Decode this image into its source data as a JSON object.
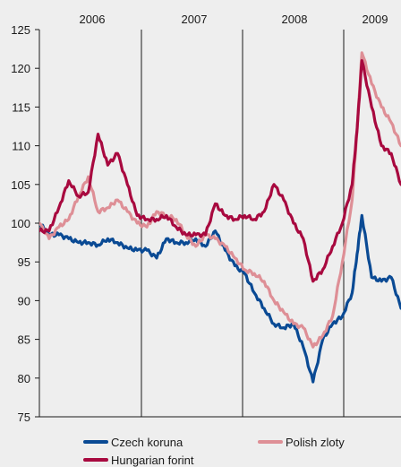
{
  "chart_data": {
    "type": "line",
    "title": "",
    "xlabel": "",
    "ylabel": "",
    "ylim": [
      75,
      125
    ],
    "yticks": [
      75,
      80,
      85,
      90,
      95,
      100,
      105,
      110,
      115,
      120,
      125
    ],
    "year_labels": [
      "2006",
      "2007",
      "2008",
      "2009"
    ],
    "grid": false,
    "year_dividers": true,
    "legend_position": "bottom",
    "series": [
      {
        "name": "Czech koruna",
        "color": "#0a4a94",
        "x": [
          2005.85,
          2005.95,
          2006.05,
          2006.15,
          2006.25,
          2006.35,
          2006.45,
          2006.55,
          2006.65,
          2006.75,
          2006.85,
          2006.95,
          2007.05,
          2007.15,
          2007.25,
          2007.35,
          2007.45,
          2007.55,
          2007.65,
          2007.75,
          2007.85,
          2007.95,
          2008.05,
          2008.15,
          2008.25,
          2008.35,
          2008.45,
          2008.55,
          2008.65,
          2008.75,
          2008.85,
          2008.95,
          2009.05,
          2009.1,
          2009.15,
          2009.25,
          2009.35,
          2009.45,
          2009.55
        ],
        "values": [
          100,
          98.5,
          98.5,
          98,
          97.5,
          97.5,
          97.2,
          98,
          97.5,
          96.8,
          96.5,
          96.5,
          95.5,
          98,
          97.5,
          97.5,
          98,
          97,
          99,
          96.5,
          94.5,
          93.5,
          91,
          89,
          87,
          86.5,
          87,
          84,
          79.5,
          85,
          87,
          88,
          91,
          96,
          101,
          93,
          92.5,
          93,
          89
        ]
      },
      {
        "name": "Polish zloty",
        "color": "#de8f96",
        "x": [
          2005.85,
          2005.95,
          2006.05,
          2006.15,
          2006.25,
          2006.35,
          2006.45,
          2006.55,
          2006.65,
          2006.75,
          2006.85,
          2006.95,
          2007.05,
          2007.15,
          2007.25,
          2007.35,
          2007.45,
          2007.55,
          2007.65,
          2007.75,
          2007.85,
          2007.95,
          2008.05,
          2008.15,
          2008.25,
          2008.35,
          2008.45,
          2008.55,
          2008.65,
          2008.75,
          2008.85,
          2008.95,
          2009.05,
          2009.1,
          2009.15,
          2009.25,
          2009.35,
          2009.45,
          2009.55
        ],
        "values": [
          100,
          98,
          99.5,
          100.5,
          103.5,
          106,
          101.5,
          102,
          103,
          101.5,
          100,
          99.5,
          101.5,
          101,
          100.5,
          98.5,
          97,
          98.5,
          98,
          97,
          95.5,
          94,
          93.5,
          92.5,
          90,
          88.5,
          87,
          86.5,
          84,
          85.5,
          88,
          95,
          103,
          112,
          122,
          118,
          115,
          113,
          110
        ]
      },
      {
        "name": "Hungarian forint",
        "color": "#a8093f",
        "x": [
          2005.85,
          2005.95,
          2006.05,
          2006.15,
          2006.25,
          2006.35,
          2006.45,
          2006.55,
          2006.65,
          2006.75,
          2006.85,
          2006.95,
          2007.05,
          2007.15,
          2007.25,
          2007.35,
          2007.45,
          2007.55,
          2007.65,
          2007.75,
          2007.85,
          2007.95,
          2008.05,
          2008.15,
          2008.25,
          2008.35,
          2008.45,
          2008.55,
          2008.65,
          2008.75,
          2008.85,
          2008.95,
          2009.05,
          2009.1,
          2009.15,
          2009.25,
          2009.35,
          2009.45,
          2009.55
        ],
        "values": [
          99,
          99,
          102,
          105.5,
          103.5,
          104,
          111.5,
          107.5,
          109,
          105,
          101,
          100.5,
          100.5,
          101,
          99.5,
          98.5,
          98.5,
          98.5,
          102.5,
          101,
          100.5,
          101,
          100.5,
          101.5,
          105,
          103,
          100,
          98,
          92.5,
          94,
          97,
          100,
          105,
          112,
          121,
          115,
          110,
          109,
          105
        ]
      }
    ]
  }
}
